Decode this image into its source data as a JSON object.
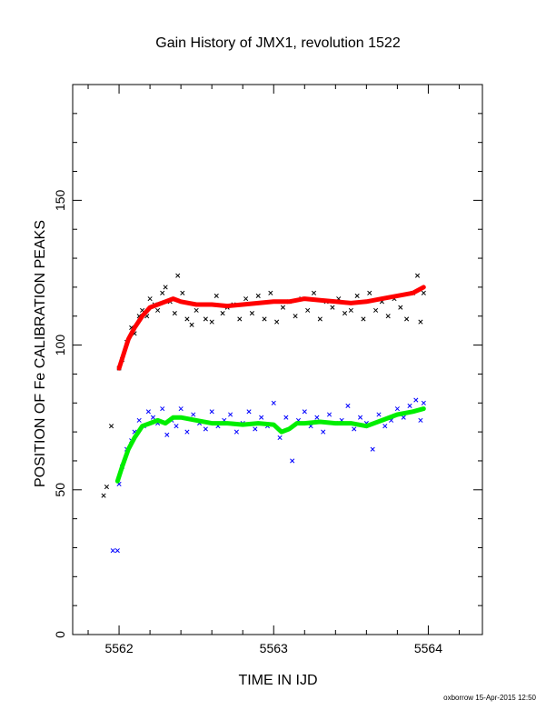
{
  "chart_data": {
    "type": "scatter",
    "title": "Gain History of JMX1, revolution 1522",
    "xlabel": "TIME IN IJD",
    "ylabel": "POSITION OF Fe CALIBRATION PEAKS",
    "xlim": [
      5561.7,
      5564.35
    ],
    "ylim": [
      0,
      190
    ],
    "x_ticks": [
      5562,
      5563,
      5564
    ],
    "y_ticks": [
      0,
      50,
      100,
      150
    ],
    "grid": false,
    "legend": "none",
    "footer": "oxborrow 15-Apr-2015 12:50",
    "series": [
      {
        "marker": "x",
        "color": "#000000",
        "x": [
          5561.9,
          5561.92,
          5562,
          5562.02,
          5562.05,
          5562.08,
          5562.1,
          5562.13,
          5562.15,
          5562.18,
          5562.2,
          5562.23,
          5562.25,
          5562.28,
          5562.3,
          5562.33,
          5562.36,
          5562.38,
          5562.41,
          5562.44,
          5562.47,
          5562.5,
          5562.53,
          5562.56,
          5562.6,
          5562.63,
          5562.67,
          5562.7,
          5562.74,
          5562.78,
          5562.82,
          5562.86,
          5562.9,
          5562.94,
          5562.98,
          5563.02,
          5563.06,
          5563.1,
          5563.14,
          5563.18,
          5563.22,
          5563.26,
          5563.3,
          5563.34,
          5563.38,
          5563.42,
          5563.46,
          5563.5,
          5563.54,
          5563.58,
          5563.62,
          5563.66,
          5563.7,
          5563.74,
          5563.78,
          5563.82,
          5563.86,
          5563.9,
          5563.93,
          5563.95,
          5563.97
        ],
        "y": [
          48,
          51,
          92,
          95,
          101,
          106,
          104,
          110,
          112,
          110,
          116,
          114,
          112,
          118,
          120,
          115,
          111,
          124,
          118,
          109,
          107,
          112,
          114,
          109,
          108,
          117,
          111,
          113,
          114,
          109,
          116,
          111,
          117,
          109,
          118,
          108,
          113,
          115,
          110,
          116,
          112,
          118,
          109,
          115,
          113,
          116,
          111,
          112,
          117,
          109,
          118,
          112,
          115,
          110,
          116,
          113,
          109,
          118,
          124,
          108,
          118
        ]
      },
      {
        "marker": "line",
        "color": "#ff0000",
        "x": [
          5562,
          5562.03,
          5562.06,
          5562.1,
          5562.15,
          5562.2,
          5562.25,
          5562.3,
          5562.35,
          5562.4,
          5562.5,
          5562.6,
          5562.7,
          5562.8,
          5562.9,
          5563,
          5563.1,
          5563.2,
          5563.3,
          5563.4,
          5563.5,
          5563.6,
          5563.7,
          5563.8,
          5563.9,
          5563.97
        ],
        "y": [
          92,
          97,
          102,
          106,
          110,
          113,
          114,
          115,
          116,
          115,
          114,
          114,
          113.5,
          114,
          114.5,
          115,
          115,
          116,
          115.5,
          115,
          114.5,
          115,
          116,
          117,
          118,
          120
        ]
      },
      {
        "marker": "x",
        "color": "#0000ff",
        "x": [
          5561.96,
          5561.99,
          5562,
          5562.02,
          5562.05,
          5562.08,
          5562.1,
          5562.13,
          5562.16,
          5562.19,
          5562.22,
          5562.25,
          5562.28,
          5562.31,
          5562.34,
          5562.37,
          5562.4,
          5562.44,
          5562.48,
          5562.52,
          5562.56,
          5562.6,
          5562.64,
          5562.68,
          5562.72,
          5562.76,
          5562.8,
          5562.84,
          5562.88,
          5562.92,
          5562.96,
          5563,
          5563.04,
          5563.08,
          5563.12,
          5563.16,
          5563.2,
          5563.24,
          5563.28,
          5563.32,
          5563.36,
          5563.4,
          5563.44,
          5563.48,
          5563.52,
          5563.56,
          5563.6,
          5563.64,
          5563.68,
          5563.72,
          5563.76,
          5563.8,
          5563.84,
          5563.88,
          5563.92,
          5563.95,
          5563.97
        ],
        "y": [
          29,
          29,
          52,
          58,
          64,
          67,
          70,
          74,
          72,
          77,
          75,
          73,
          78,
          69,
          74,
          72,
          78,
          70,
          76,
          73,
          71,
          77,
          72,
          74,
          76,
          70,
          73,
          77,
          71,
          75,
          72,
          80,
          68,
          75,
          60,
          74,
          77,
          72,
          75,
          70,
          76,
          73,
          74,
          79,
          71,
          75,
          73,
          64,
          76,
          72,
          74,
          78,
          75,
          79,
          81,
          74,
          80
        ]
      },
      {
        "marker": "line",
        "color": "#00ee00",
        "x": [
          5561.99,
          5562.02,
          5562.06,
          5562.1,
          5562.15,
          5562.2,
          5562.25,
          5562.3,
          5562.35,
          5562.4,
          5562.5,
          5562.6,
          5562.7,
          5562.8,
          5562.9,
          5563,
          5563.05,
          5563.1,
          5563.15,
          5563.2,
          5563.3,
          5563.4,
          5563.5,
          5563.6,
          5563.7,
          5563.8,
          5563.9,
          5563.97
        ],
        "y": [
          53,
          58,
          64,
          68,
          72,
          73,
          74,
          73,
          75,
          75,
          74,
          73,
          73,
          72.5,
          73,
          72.5,
          70,
          71,
          73,
          73,
          73.5,
          73,
          73,
          72,
          74,
          76,
          77,
          78
        ]
      }
    ]
  },
  "extra_markers": [
    {
      "x": 5561.95,
      "y": 72,
      "color": "#000000"
    }
  ]
}
